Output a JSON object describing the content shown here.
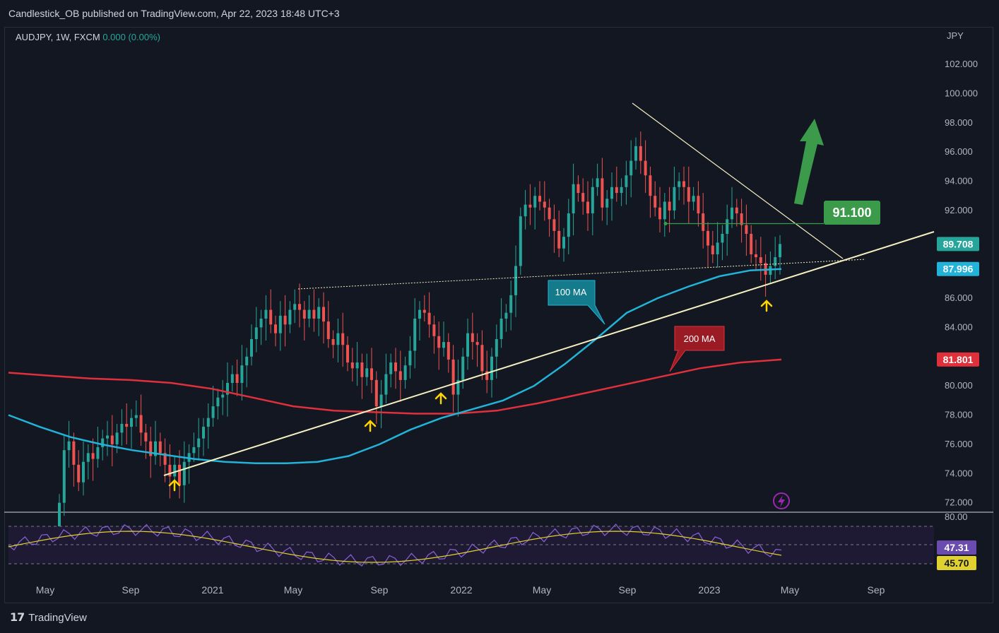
{
  "header": {
    "text": "Candlestick_OB published on TradingView.com, Apr 22, 2023 18:48 UTC+3"
  },
  "legend": {
    "symbol": "AUDJPY, 1W, FXCM",
    "change": "0.000 (0.00%)"
  },
  "footer": {
    "brand": "TradingView"
  },
  "colors": {
    "bg": "#131722",
    "up": "#26a69a",
    "down": "#ef5350",
    "ma100": "#22b4d8",
    "ma200": "#e0303c",
    "trend": "#f5f0c0",
    "rsi": "#8a62d8",
    "rsi_ma": "#e0d030",
    "target": "#3b9b4b",
    "arrow": "#ffd500"
  },
  "chart_data": {
    "type": "candlestick",
    "currency_label": "JPY",
    "y_ticks": [
      "102.000",
      "100.000",
      "98.000",
      "96.000",
      "94.000",
      "92.000",
      "86.000",
      "84.000",
      "80.000",
      "78.000",
      "76.000",
      "74.000",
      "72.000"
    ],
    "ylim": [
      71.5,
      103.5
    ],
    "x_ticks": [
      "May",
      "Sep",
      "2021",
      "May",
      "Sep",
      "2022",
      "May",
      "Sep",
      "2023",
      "May",
      "Sep"
    ],
    "price_labels": [
      {
        "text": "89.708",
        "value": 89.708,
        "color": "#26a69a",
        "name": "last-price-label"
      },
      {
        "text": "87.996",
        "value": 87.996,
        "color": "#22b4d8",
        "name": "ma100-price-label"
      },
      {
        "text": "81.801",
        "value": 81.801,
        "color": "#e0303c",
        "name": "ma200-price-label"
      }
    ],
    "annotations": {
      "target": {
        "text": "91.100",
        "value": 91.1
      },
      "ma100_label": "100 MA",
      "ma200_label": "200 MA"
    },
    "candles_close": [
      72.0,
      75.6,
      76.2,
      74.6,
      73.4,
      74.8,
      75.4,
      75.0,
      75.8,
      76.4,
      76.6,
      76.0,
      76.8,
      77.4,
      77.2,
      77.8,
      78.0,
      76.8,
      76.2,
      75.2,
      76.2,
      75.4,
      74.6,
      73.8,
      74.6,
      73.2,
      74.8,
      75.4,
      75.8,
      76.4,
      77.2,
      77.8,
      78.6,
      79.2,
      79.4,
      80.2,
      80.8,
      80.2,
      81.4,
      82.0,
      83.2,
      84.0,
      84.6,
      85.2,
      84.2,
      83.6,
      84.8,
      84.2,
      85.2,
      85.6,
      85.2,
      84.6,
      85.2,
      84.6,
      85.4,
      84.4,
      83.2,
      82.8,
      83.6,
      82.8,
      81.6,
      81.2,
      81.6,
      80.6,
      81.2,
      80.4,
      78.6,
      79.4,
      80.8,
      81.6,
      81.0,
      80.4,
      81.4,
      82.4,
      84.6,
      85.2,
      85.0,
      84.2,
      83.4,
      82.6,
      83.0,
      81.8,
      79.4,
      80.4,
      82.0,
      83.6,
      83.0,
      82.8,
      81.0,
      80.4,
      82.0,
      83.2,
      84.6,
      85.0,
      86.2,
      88.2,
      91.6,
      92.4,
      92.2,
      93.0,
      92.6,
      92.2,
      91.4,
      90.6,
      89.4,
      90.2,
      91.8,
      93.8,
      93.2,
      92.6,
      91.8,
      93.6,
      94.2,
      92.2,
      92.8,
      93.6,
      93.2,
      93.6,
      94.4,
      95.4,
      96.4,
      95.4,
      94.4,
      93.0,
      92.2,
      91.4,
      92.6,
      92.0,
      93.6,
      94.0,
      93.6,
      92.6,
      93.0,
      91.8,
      90.6,
      89.6,
      89.0,
      89.8,
      90.4,
      91.4,
      92.2,
      91.8,
      91.0,
      90.4,
      89.0,
      88.8,
      88.4,
      87.6,
      88.2,
      88.8,
      89.708
    ],
    "ma100": [
      78.0,
      77.2,
      76.5,
      76.0,
      75.6,
      75.3,
      75.0,
      74.8,
      74.7,
      74.7,
      74.8,
      75.2,
      76.0,
      77.0,
      77.8,
      78.4,
      79.0,
      80.0,
      81.5,
      83.2,
      85.0,
      86.0,
      86.8,
      87.5,
      87.9,
      87.996
    ],
    "ma200": [
      80.9,
      80.7,
      80.5,
      80.4,
      80.2,
      79.8,
      79.2,
      78.6,
      78.3,
      78.2,
      78.1,
      78.1,
      78.3,
      78.8,
      79.4,
      80.0,
      80.6,
      81.2,
      81.6,
      81.801
    ],
    "rsi": {
      "upper": "80.00",
      "value": "47.31",
      "ma_value": "45.70"
    }
  }
}
